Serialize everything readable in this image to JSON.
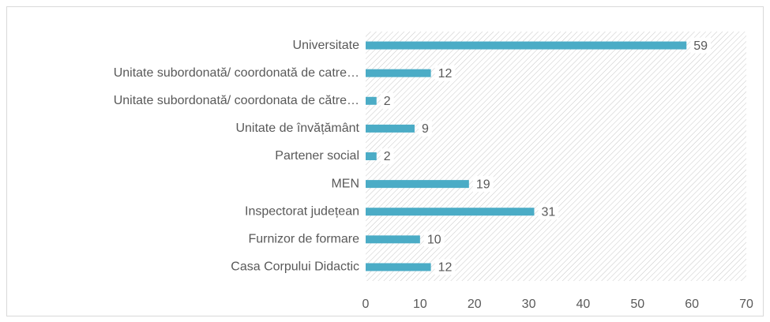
{
  "chart_data": {
    "type": "bar",
    "orientation": "horizontal",
    "categories": [
      "Universitate",
      "Unitate subordonată/ coordonată de catre…",
      "Unitate subordonată/ coordonata de către…",
      "Unitate de învățământ",
      "Partener social",
      "MEN",
      "Inspectorat județean",
      "Furnizor de formare",
      "Casa Corpului Didactic"
    ],
    "values": [
      59,
      12,
      2,
      9,
      2,
      19,
      31,
      10,
      12
    ],
    "color": "#4bacc6",
    "xlim": [
      0,
      70
    ],
    "xticks": [
      0,
      10,
      20,
      30,
      40,
      50,
      60,
      70
    ],
    "grid": true
  }
}
